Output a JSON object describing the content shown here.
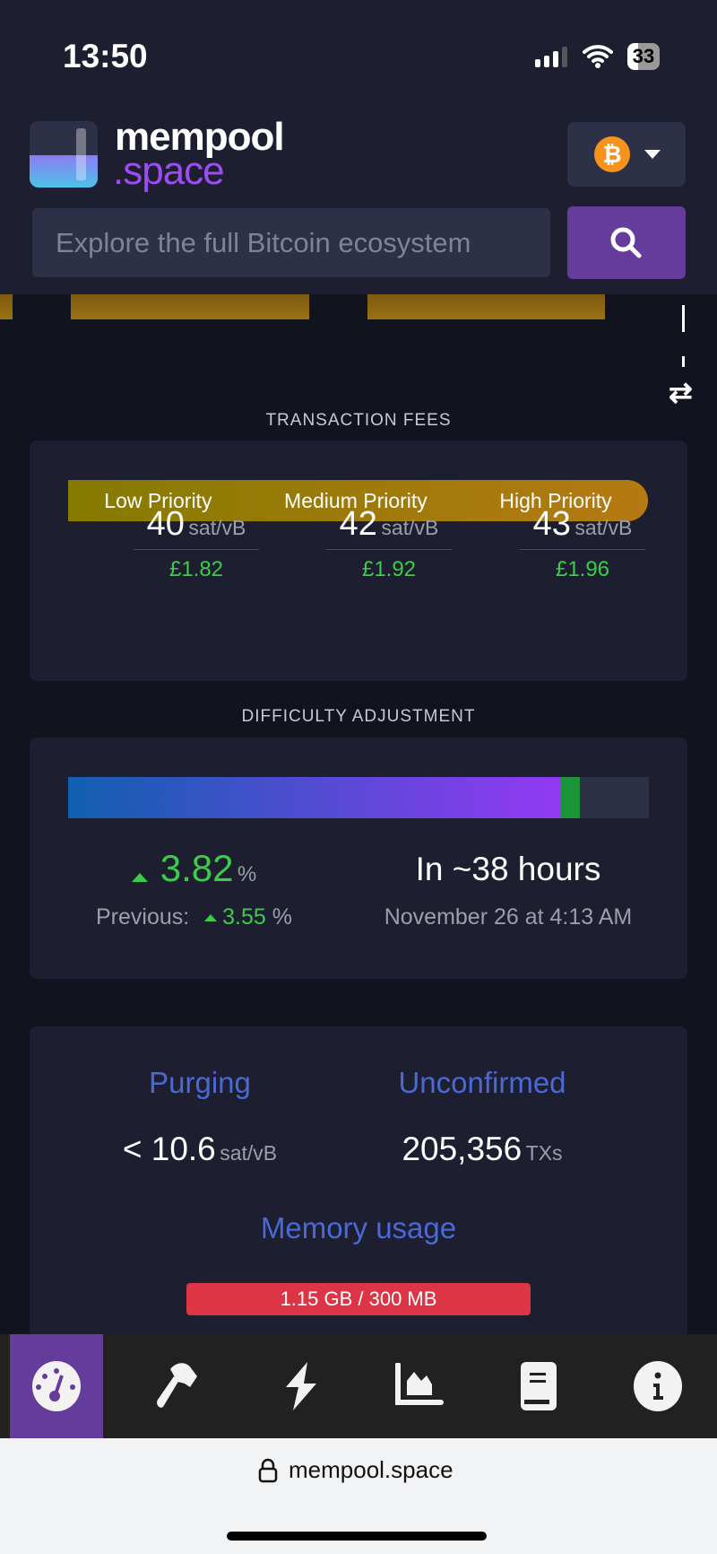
{
  "status_bar": {
    "time": "13:50",
    "battery": "33"
  },
  "header": {
    "brand_top": "mempool",
    "brand_bottom": ".space",
    "currency_icon": "bitcoin-icon",
    "search_placeholder": "Explore the full Bitcoin ecosystem"
  },
  "fees": {
    "title": "TRANSACTION FEES",
    "priorities": [
      "Low Priority",
      "Medium Priority",
      "High Priority"
    ],
    "items": [
      {
        "value": "40",
        "unit": "sat/vB",
        "fiat": "£1.82"
      },
      {
        "value": "42",
        "unit": "sat/vB",
        "fiat": "£1.92"
      },
      {
        "value": "43",
        "unit": "sat/vB",
        "fiat": "£1.96"
      }
    ]
  },
  "difficulty": {
    "title": "DIFFICULTY ADJUSTMENT",
    "progress_percent": 84.7,
    "green_end_percent": 88.1,
    "change": "3.82",
    "change_unit": "%",
    "previous_label": "Previous:",
    "previous": "3.55",
    "previous_unit": "%",
    "eta": "In ~38 hours",
    "eta_date": "November 26 at 4:13 AM"
  },
  "mempool": {
    "purging_label": "Purging",
    "purging_value": "< 10.6",
    "purging_unit": "sat/vB",
    "unconfirmed_label": "Unconfirmed",
    "unconfirmed_value": "205,356",
    "unconfirmed_unit": "TXs",
    "memory_label": "Memory usage",
    "memory_value": "1.15 GB / 300 MB"
  },
  "nav": [
    "dashboard-icon",
    "hammer-icon",
    "lightning-icon",
    "chart-area-icon",
    "book-icon",
    "info-icon"
  ],
  "browser": {
    "url": "mempool.space"
  },
  "colors": {
    "accent": "#653b9c",
    "green": "#3bcc49",
    "memory_bar": "#dc3545"
  }
}
